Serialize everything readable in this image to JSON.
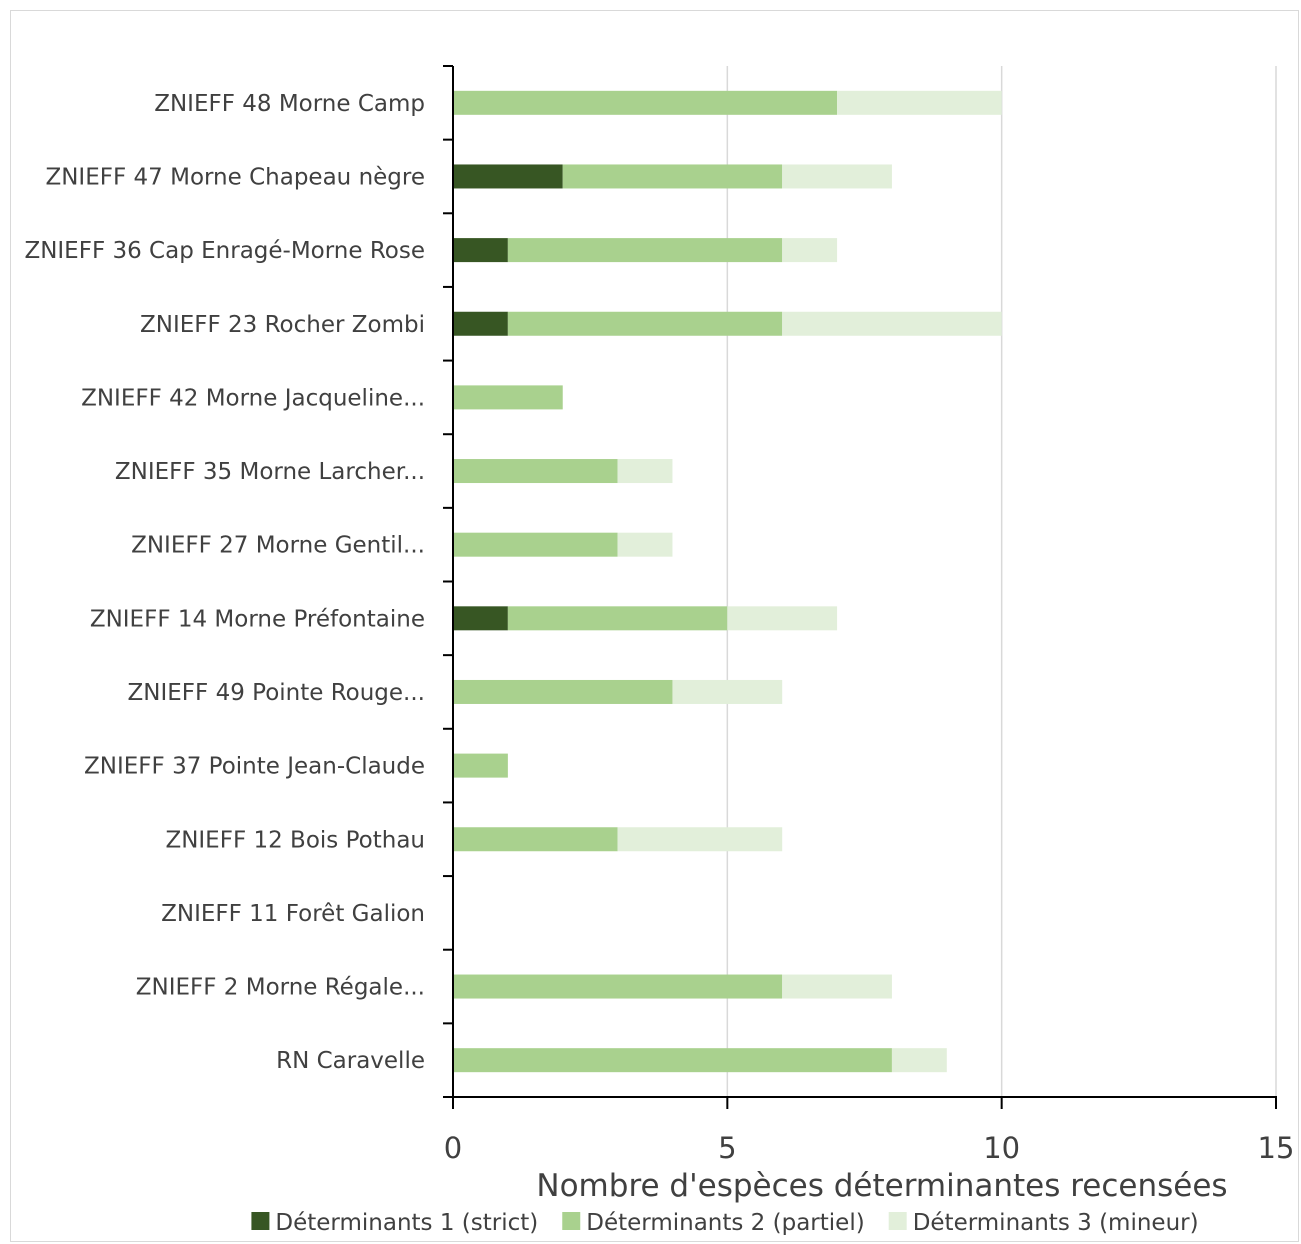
{
  "chart_data": {
    "type": "bar",
    "orientation": "horizontal",
    "stacked": true,
    "categories": [
      "ZNIEFF 48 Morne Camp",
      "ZNIEFF 47 Morne Chapeau nègre",
      "ZNIEFF 36 Cap Enragé-Morne Rose",
      "ZNIEFF 23 Rocher Zombi",
      "ZNIEFF 42 Morne Jacqueline...",
      "ZNIEFF 35 Morne Larcher...",
      "ZNIEFF 27 Morne Gentil...",
      "ZNIEFF 14 Morne Préfontaine",
      "ZNIEFF 49 Pointe Rouge...",
      "ZNIEFF 37 Pointe Jean-Claude",
      "ZNIEFF 12 Bois Pothau",
      "ZNIEFF 11 Forêt Galion",
      "ZNIEFF 2 Morne Régale...",
      "RN Caravelle"
    ],
    "series": [
      {
        "name": "Déterminants 1 (strict)",
        "color": "#375623",
        "values": [
          0,
          2,
          1,
          1,
          0,
          0,
          0,
          1,
          0,
          0,
          0,
          0,
          0,
          0
        ]
      },
      {
        "name": "Déterminants 2 (partiel)",
        "color": "#a9d18e",
        "values": [
          7,
          4,
          5,
          5,
          2,
          3,
          3,
          4,
          4,
          1,
          3,
          0,
          6,
          8
        ]
      },
      {
        "name": "Déterminants 3 (mineur)",
        "color": "#e2efda",
        "values": [
          3,
          2,
          1,
          4,
          0,
          1,
          1,
          2,
          2,
          0,
          3,
          0,
          2,
          1
        ]
      }
    ],
    "xlabel": "Nombre d'espèces déterminantes recensées",
    "ylabel": "",
    "xlim": [
      0,
      15
    ],
    "xticks": [
      "0",
      "5",
      "10",
      "15"
    ],
    "grid": "vertical",
    "legend": "bottom"
  }
}
